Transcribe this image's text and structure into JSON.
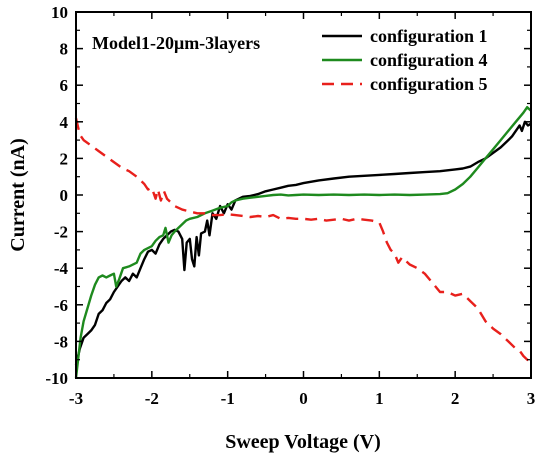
{
  "chart_data": {
    "type": "line",
    "title": "",
    "annotation": "Model1-20μm-3layers",
    "xlabel": "Sweep Voltage (V)",
    "ylabel": "Current (nA)",
    "xlim": [
      -3,
      3
    ],
    "ylim": [
      -10,
      10
    ],
    "xticks": [
      -3,
      -2,
      -1,
      0,
      1,
      2,
      3
    ],
    "yticks": [
      -10,
      -8,
      -6,
      -4,
      -2,
      0,
      2,
      4,
      6,
      8,
      10
    ],
    "grid": false,
    "legend_position": "top-right",
    "series": [
      {
        "name": "configuration 1",
        "color": "#000000",
        "style": "solid",
        "points": [
          [
            -3.0,
            -9.3
          ],
          [
            -2.95,
            -8.4
          ],
          [
            -2.9,
            -7.8
          ],
          [
            -2.85,
            -7.6
          ],
          [
            -2.8,
            -7.4
          ],
          [
            -2.75,
            -7.1
          ],
          [
            -2.7,
            -6.5
          ],
          [
            -2.65,
            -6.3
          ],
          [
            -2.6,
            -5.9
          ],
          [
            -2.55,
            -5.7
          ],
          [
            -2.5,
            -5.3
          ],
          [
            -2.45,
            -5.0
          ],
          [
            -2.4,
            -4.7
          ],
          [
            -2.35,
            -4.5
          ],
          [
            -2.3,
            -4.7
          ],
          [
            -2.25,
            -4.3
          ],
          [
            -2.2,
            -4.5
          ],
          [
            -2.15,
            -4.0
          ],
          [
            -2.1,
            -3.5
          ],
          [
            -2.05,
            -3.1
          ],
          [
            -2.0,
            -3.0
          ],
          [
            -1.95,
            -3.2
          ],
          [
            -1.9,
            -2.7
          ],
          [
            -1.85,
            -2.4
          ],
          [
            -1.8,
            -2.2
          ],
          [
            -1.75,
            -2.0
          ],
          [
            -1.7,
            -1.9
          ],
          [
            -1.65,
            -2.0
          ],
          [
            -1.6,
            -2.4
          ],
          [
            -1.57,
            -4.1
          ],
          [
            -1.54,
            -2.6
          ],
          [
            -1.5,
            -2.4
          ],
          [
            -1.47,
            -3.5
          ],
          [
            -1.44,
            -3.9
          ],
          [
            -1.41,
            -2.3
          ],
          [
            -1.38,
            -3.3
          ],
          [
            -1.35,
            -2.1
          ],
          [
            -1.3,
            -2.0
          ],
          [
            -1.27,
            -1.4
          ],
          [
            -1.24,
            -2.2
          ],
          [
            -1.2,
            -1.0
          ],
          [
            -1.15,
            -1.3
          ],
          [
            -1.1,
            -0.6
          ],
          [
            -1.05,
            -1.0
          ],
          [
            -1.0,
            -0.5
          ],
          [
            -0.95,
            -0.8
          ],
          [
            -0.9,
            -0.3
          ],
          [
            -0.8,
            -0.1
          ],
          [
            -0.7,
            -0.05
          ],
          [
            -0.6,
            0.05
          ],
          [
            -0.5,
            0.2
          ],
          [
            -0.4,
            0.3
          ],
          [
            -0.3,
            0.4
          ],
          [
            -0.2,
            0.5
          ],
          [
            -0.1,
            0.55
          ],
          [
            0.0,
            0.65
          ],
          [
            0.2,
            0.8
          ],
          [
            0.4,
            0.9
          ],
          [
            0.6,
            1.0
          ],
          [
            0.8,
            1.05
          ],
          [
            1.0,
            1.1
          ],
          [
            1.2,
            1.15
          ],
          [
            1.4,
            1.2
          ],
          [
            1.6,
            1.25
          ],
          [
            1.8,
            1.3
          ],
          [
            2.0,
            1.4
          ],
          [
            2.1,
            1.45
          ],
          [
            2.2,
            1.55
          ],
          [
            2.3,
            1.8
          ],
          [
            2.4,
            2.0
          ],
          [
            2.5,
            2.3
          ],
          [
            2.6,
            2.6
          ],
          [
            2.7,
            3.0
          ],
          [
            2.75,
            3.2
          ],
          [
            2.8,
            3.5
          ],
          [
            2.85,
            3.8
          ],
          [
            2.88,
            3.5
          ],
          [
            2.92,
            4.0
          ],
          [
            2.96,
            3.8
          ],
          [
            3.0,
            3.9
          ]
        ]
      },
      {
        "name": "configuration 4",
        "color": "#1e8a1e",
        "style": "solid",
        "points": [
          [
            -3.0,
            -10.0
          ],
          [
            -2.97,
            -8.9
          ],
          [
            -2.94,
            -7.8
          ],
          [
            -2.9,
            -6.9
          ],
          [
            -2.85,
            -6.2
          ],
          [
            -2.8,
            -5.5
          ],
          [
            -2.75,
            -4.9
          ],
          [
            -2.7,
            -4.5
          ],
          [
            -2.65,
            -4.4
          ],
          [
            -2.6,
            -4.5
          ],
          [
            -2.55,
            -4.4
          ],
          [
            -2.5,
            -4.3
          ],
          [
            -2.47,
            -5.0
          ],
          [
            -2.43,
            -4.6
          ],
          [
            -2.38,
            -4.0
          ],
          [
            -2.3,
            -3.9
          ],
          [
            -2.2,
            -3.7
          ],
          [
            -2.15,
            -3.2
          ],
          [
            -2.1,
            -3.0
          ],
          [
            -2.0,
            -2.8
          ],
          [
            -1.95,
            -2.5
          ],
          [
            -1.9,
            -2.3
          ],
          [
            -1.85,
            -2.2
          ],
          [
            -1.82,
            -1.8
          ],
          [
            -1.78,
            -2.6
          ],
          [
            -1.74,
            -2.2
          ],
          [
            -1.7,
            -2.0
          ],
          [
            -1.65,
            -1.8
          ],
          [
            -1.6,
            -1.6
          ],
          [
            -1.55,
            -1.4
          ],
          [
            -1.5,
            -1.3
          ],
          [
            -1.4,
            -1.2
          ],
          [
            -1.3,
            -1.0
          ],
          [
            -1.2,
            -0.85
          ],
          [
            -1.1,
            -0.7
          ],
          [
            -1.0,
            -0.6
          ],
          [
            -0.95,
            -0.4
          ],
          [
            -0.9,
            -0.3
          ],
          [
            -0.8,
            -0.2
          ],
          [
            -0.7,
            -0.15
          ],
          [
            -0.6,
            -0.1
          ],
          [
            -0.5,
            -0.05
          ],
          [
            -0.4,
            0.0
          ],
          [
            -0.3,
            0.02
          ],
          [
            -0.2,
            -0.02
          ],
          [
            -0.1,
            0.0
          ],
          [
            0.0,
            0.02
          ],
          [
            0.2,
            0.0
          ],
          [
            0.4,
            0.02
          ],
          [
            0.6,
            0.0
          ],
          [
            0.8,
            0.02
          ],
          [
            1.0,
            0.0
          ],
          [
            1.2,
            0.02
          ],
          [
            1.4,
            0.0
          ],
          [
            1.6,
            0.02
          ],
          [
            1.8,
            0.05
          ],
          [
            1.9,
            0.1
          ],
          [
            2.0,
            0.3
          ],
          [
            2.1,
            0.6
          ],
          [
            2.2,
            1.0
          ],
          [
            2.3,
            1.5
          ],
          [
            2.4,
            2.0
          ],
          [
            2.5,
            2.5
          ],
          [
            2.6,
            3.0
          ],
          [
            2.7,
            3.5
          ],
          [
            2.8,
            4.0
          ],
          [
            2.9,
            4.5
          ],
          [
            2.95,
            4.8
          ],
          [
            3.0,
            4.6
          ]
        ]
      },
      {
        "name": "configuration 5",
        "color": "#e8201c",
        "style": "dashed",
        "points": [
          [
            -3.0,
            4.2
          ],
          [
            -2.95,
            3.3
          ],
          [
            -2.9,
            3.0
          ],
          [
            -2.8,
            2.7
          ],
          [
            -2.7,
            2.4
          ],
          [
            -2.6,
            2.1
          ],
          [
            -2.5,
            1.8
          ],
          [
            -2.4,
            1.5
          ],
          [
            -2.3,
            1.3
          ],
          [
            -2.2,
            1.0
          ],
          [
            -2.1,
            0.6
          ],
          [
            -2.05,
            0.3
          ],
          [
            -2.0,
            0.4
          ],
          [
            -1.95,
            -0.2
          ],
          [
            -1.92,
            0.3
          ],
          [
            -1.88,
            -0.3
          ],
          [
            -1.84,
            0.2
          ],
          [
            -1.8,
            -0.2
          ],
          [
            -1.75,
            -0.4
          ],
          [
            -1.7,
            -0.6
          ],
          [
            -1.6,
            -0.8
          ],
          [
            -1.5,
            -0.9
          ],
          [
            -1.4,
            -1.0
          ],
          [
            -1.3,
            -1.0
          ],
          [
            -1.2,
            -1.1
          ],
          [
            -1.1,
            -1.1
          ],
          [
            -1.0,
            -1.05
          ],
          [
            -0.9,
            -1.1
          ],
          [
            -0.8,
            -1.15
          ],
          [
            -0.7,
            -1.2
          ],
          [
            -0.6,
            -1.15
          ],
          [
            -0.5,
            -1.2
          ],
          [
            -0.4,
            -1.1
          ],
          [
            -0.3,
            -1.3
          ],
          [
            -0.2,
            -1.25
          ],
          [
            -0.1,
            -1.3
          ],
          [
            0.0,
            -1.3
          ],
          [
            0.1,
            -1.35
          ],
          [
            0.2,
            -1.3
          ],
          [
            0.3,
            -1.4
          ],
          [
            0.4,
            -1.35
          ],
          [
            0.5,
            -1.3
          ],
          [
            0.6,
            -1.4
          ],
          [
            0.7,
            -1.3
          ],
          [
            0.8,
            -1.35
          ],
          [
            0.9,
            -1.4
          ],
          [
            1.0,
            -1.5
          ],
          [
            1.05,
            -2.0
          ],
          [
            1.1,
            -2.6
          ],
          [
            1.15,
            -3.0
          ],
          [
            1.2,
            -3.2
          ],
          [
            1.25,
            -3.7
          ],
          [
            1.3,
            -3.4
          ],
          [
            1.35,
            -3.6
          ],
          [
            1.4,
            -3.8
          ],
          [
            1.5,
            -4.0
          ],
          [
            1.6,
            -4.3
          ],
          [
            1.7,
            -4.8
          ],
          [
            1.8,
            -5.3
          ],
          [
            1.9,
            -5.3
          ],
          [
            2.0,
            -5.5
          ],
          [
            2.1,
            -5.4
          ],
          [
            2.2,
            -5.8
          ],
          [
            2.3,
            -6.2
          ],
          [
            2.4,
            -6.9
          ],
          [
            2.5,
            -7.3
          ],
          [
            2.6,
            -7.6
          ],
          [
            2.7,
            -8.0
          ],
          [
            2.8,
            -8.4
          ],
          [
            2.85,
            -8.5
          ],
          [
            2.9,
            -8.8
          ],
          [
            2.95,
            -9.0
          ],
          [
            3.0,
            -9.1
          ]
        ]
      }
    ]
  }
}
